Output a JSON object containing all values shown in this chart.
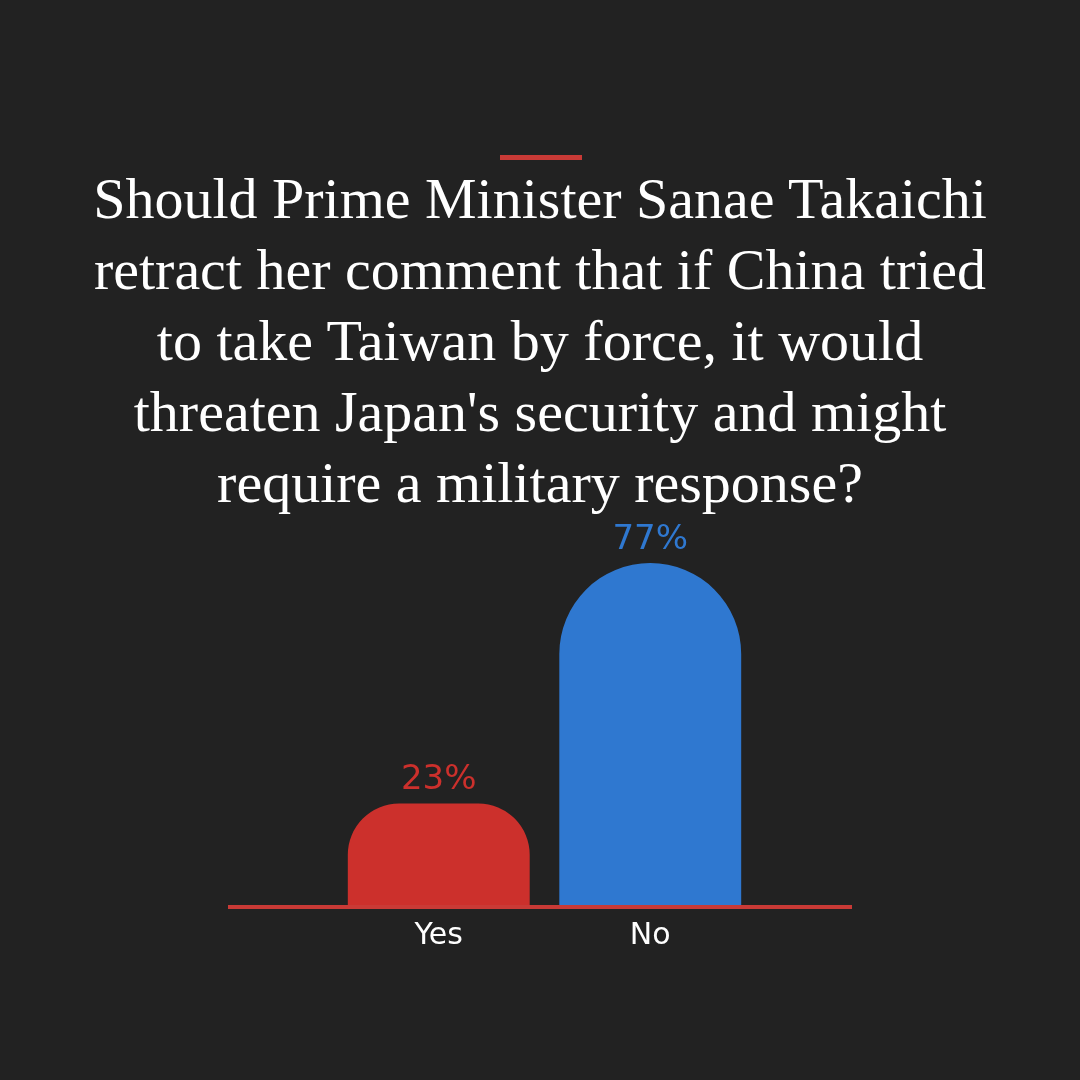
{
  "chart_data": {
    "type": "bar",
    "title": "Should Prime Minister Sanae Takaichi retract her comment that if China tried to take Taiwan by force, it would threaten Japan's security and might require a military response?",
    "categories": [
      "Yes",
      "No"
    ],
    "values": [
      23,
      77
    ],
    "colors": [
      "#cc302c",
      "#2f78d0"
    ],
    "value_labels": [
      "23%",
      "77%"
    ]
  }
}
